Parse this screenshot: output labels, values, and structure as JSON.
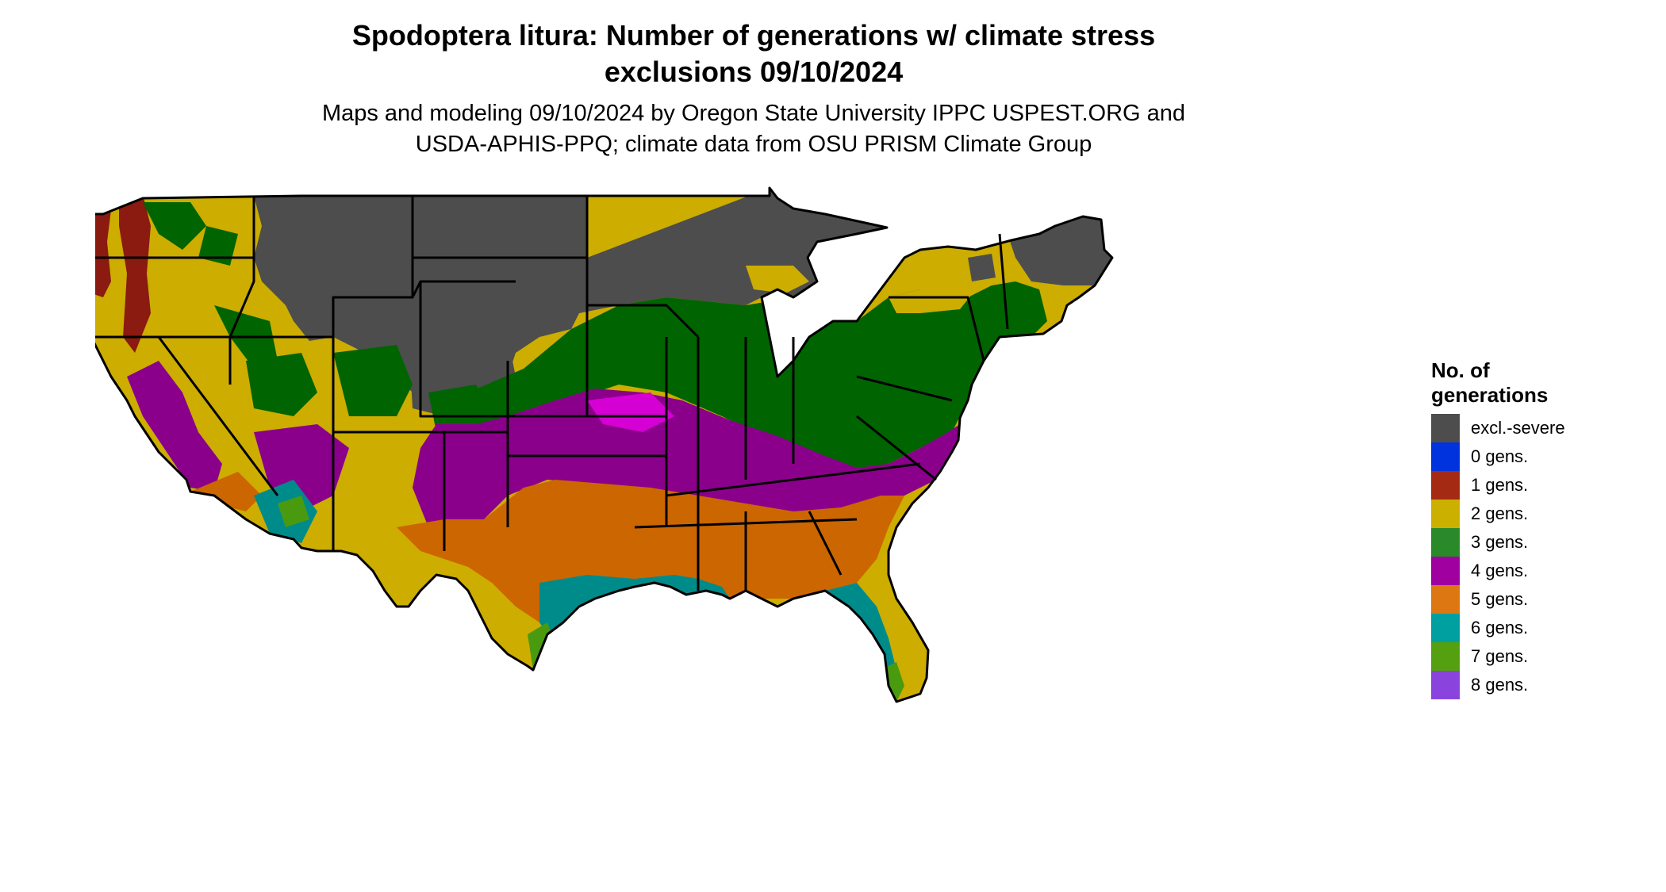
{
  "title_line1": "Spodoptera litura: Number of generations w/ climate stress",
  "title_line2": "exclusions 09/10/2024",
  "subtitle_line1": "Maps and modeling 09/10/2024 by Oregon State University IPPC USPEST.ORG and",
  "subtitle_line2": "USDA-APHIS-PPQ; climate data from OSU PRISM Climate Group",
  "legend": {
    "title_line1": "No. of",
    "title_line2": "generations",
    "items": [
      {
        "label": "excl.-severe",
        "color": "#4d4d4d"
      },
      {
        "label": "0 gens.",
        "color": "#0033dd"
      },
      {
        "label": "1 gens.",
        "color": "#a52a14"
      },
      {
        "label": "2 gens.",
        "color": "#ccb000"
      },
      {
        "label": "3 gens.",
        "color": "#2a8a2a"
      },
      {
        "label": "4 gens.",
        "color": "#a000a0"
      },
      {
        "label": "5 gens.",
        "color": "#dd7711"
      },
      {
        "label": "6 gens.",
        "color": "#00a0a0"
      },
      {
        "label": "7 gens.",
        "color": "#55a010"
      },
      {
        "label": "8 gens.",
        "color": "#8a44dd"
      }
    ]
  },
  "map_colors": {
    "excluded": "#4d4d4d",
    "gen1": "#8b1a10",
    "gen2": "#ccad00",
    "gen3": "#006400",
    "gen3_light": "#2a8a2a",
    "gen4": "#8b008b",
    "gen4_light": "#d400d4",
    "gen5": "#cc6600",
    "gen6": "#008b8b",
    "gen6_light": "#00cccc",
    "gen7": "#4a9a10",
    "border": "#000000"
  }
}
